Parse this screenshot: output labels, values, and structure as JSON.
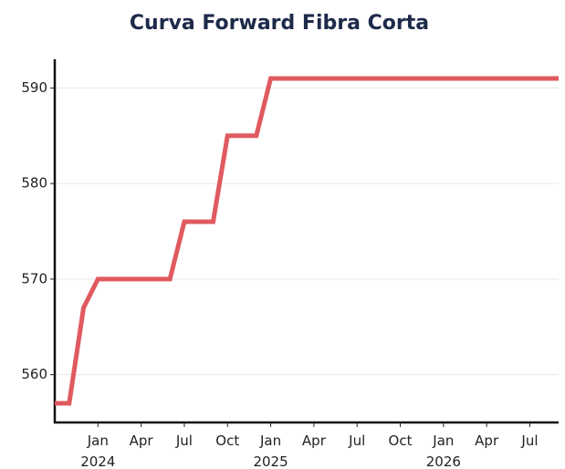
{
  "chart_data": {
    "type": "line",
    "title": "Curva Forward Fibra Corta",
    "x": [
      "2023-10",
      "2023-11",
      "2023-12",
      "2024-01",
      "2024-02",
      "2024-03",
      "2024-04",
      "2024-05",
      "2024-06",
      "2024-07",
      "2024-08",
      "2024-09",
      "2024-10",
      "2024-11",
      "2024-12",
      "2025-01",
      "2025-02",
      "2025-03",
      "2025-04",
      "2025-05",
      "2025-06",
      "2025-07",
      "2025-08",
      "2025-09",
      "2025-10",
      "2025-11",
      "2025-12",
      "2026-01",
      "2026-02",
      "2026-03",
      "2026-04",
      "2026-05",
      "2026-06",
      "2026-07",
      "2026-08",
      "2026-09"
    ],
    "series": [
      {
        "name": "Fibra Corta",
        "color": "#e05a5f",
        "values": [
          557,
          557,
          567,
          570,
          570,
          570,
          570,
          570,
          570,
          576,
          576,
          576,
          585,
          585,
          585,
          591,
          591,
          591,
          591,
          591,
          591,
          591,
          591,
          591,
          591,
          591,
          591,
          591,
          591,
          591,
          591,
          591,
          591,
          591,
          591,
          591
        ]
      }
    ],
    "xlim": [
      "2023-10",
      "2026-09"
    ],
    "xticks": [
      {
        "value": "2024-01",
        "label": "Jan 2024"
      },
      {
        "value": "2024-04",
        "label": "Apr"
      },
      {
        "value": "2024-07",
        "label": "Jul"
      },
      {
        "value": "2024-10",
        "label": "Oct"
      },
      {
        "value": "2025-01",
        "label": "Jan 2025"
      },
      {
        "value": "2025-04",
        "label": "Apr"
      },
      {
        "value": "2025-07",
        "label": "Jul"
      },
      {
        "value": "2025-10",
        "label": "Oct"
      },
      {
        "value": "2026-01",
        "label": "Jan 2026"
      },
      {
        "value": "2026-04",
        "label": "Apr"
      },
      {
        "value": "2026-07",
        "label": "Jul"
      }
    ],
    "ylim": [
      555,
      593
    ],
    "yticks": [
      560,
      570,
      580,
      590
    ],
    "grid": true
  }
}
